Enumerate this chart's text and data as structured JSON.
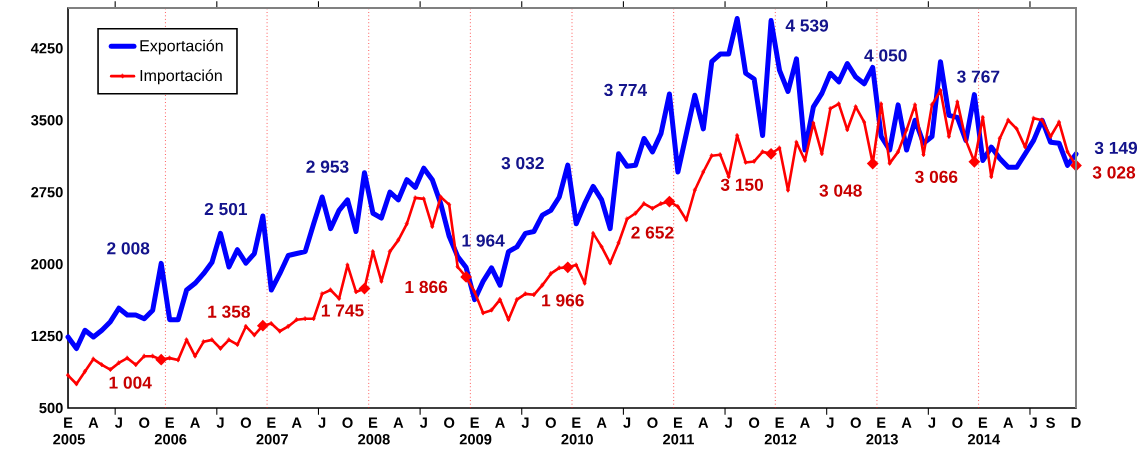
{
  "chart_data": {
    "type": "line",
    "x": [
      "2005-01",
      "2005-02",
      "2005-03",
      "2005-04",
      "2005-05",
      "2005-06",
      "2005-07",
      "2005-08",
      "2005-09",
      "2005-10",
      "2005-11",
      "2005-12",
      "2006-01",
      "2006-02",
      "2006-03",
      "2006-04",
      "2006-05",
      "2006-06",
      "2006-07",
      "2006-08",
      "2006-09",
      "2006-10",
      "2006-11",
      "2006-12",
      "2007-01",
      "2007-02",
      "2007-03",
      "2007-04",
      "2007-05",
      "2007-06",
      "2007-07",
      "2007-08",
      "2007-09",
      "2007-10",
      "2007-11",
      "2007-12",
      "2008-01",
      "2008-02",
      "2008-03",
      "2008-04",
      "2008-05",
      "2008-06",
      "2008-07",
      "2008-08",
      "2008-09",
      "2008-10",
      "2008-11",
      "2008-12",
      "2009-01",
      "2009-02",
      "2009-03",
      "2009-04",
      "2009-05",
      "2009-06",
      "2009-07",
      "2009-08",
      "2009-09",
      "2009-10",
      "2009-11",
      "2009-12",
      "2010-01",
      "2010-02",
      "2010-03",
      "2010-04",
      "2010-05",
      "2010-06",
      "2010-07",
      "2010-08",
      "2010-09",
      "2010-10",
      "2010-11",
      "2010-12",
      "2011-01",
      "2011-02",
      "2011-03",
      "2011-04",
      "2011-05",
      "2011-06",
      "2011-07",
      "2011-08",
      "2011-09",
      "2011-10",
      "2011-11",
      "2011-12",
      "2012-01",
      "2012-02",
      "2012-03",
      "2012-04",
      "2012-05",
      "2012-06",
      "2012-07",
      "2012-08",
      "2012-09",
      "2012-10",
      "2012-11",
      "2012-12",
      "2013-01",
      "2013-02",
      "2013-03",
      "2013-04",
      "2013-05",
      "2013-06",
      "2013-07",
      "2013-08",
      "2013-09",
      "2013-10",
      "2013-11",
      "2013-12",
      "2014-01",
      "2014-02",
      "2014-03",
      "2014-04",
      "2014-05",
      "2014-06",
      "2014-07",
      "2014-08",
      "2014-09",
      "2014-10",
      "2014-11",
      "2014-12"
    ],
    "series": [
      {
        "name": "Exportación",
        "color": "#0000ff",
        "marker": "none",
        "values": [
          1240,
          1120,
          1310,
          1240,
          1310,
          1400,
          1540,
          1470,
          1470,
          1430,
          1520,
          2008,
          1420,
          1420,
          1730,
          1800,
          1900,
          2020,
          2320,
          1970,
          2150,
          2010,
          2110,
          2501,
          1730,
          1900,
          2090,
          2110,
          2130,
          2420,
          2700,
          2370,
          2560,
          2670,
          2340,
          2953,
          2530,
          2480,
          2750,
          2670,
          2880,
          2800,
          3000,
          2880,
          2630,
          2290,
          2080,
          1964,
          1630,
          1820,
          1960,
          1780,
          2130,
          2180,
          2320,
          2340,
          2510,
          2560,
          2700,
          3032,
          2420,
          2630,
          2810,
          2670,
          2370,
          3150,
          3020,
          3030,
          3310,
          3170,
          3360,
          3774,
          2960,
          3360,
          3760,
          3410,
          4110,
          4190,
          4190,
          4560,
          3990,
          3930,
          3340,
          4539,
          4020,
          3800,
          4140,
          3190,
          3640,
          3780,
          3990,
          3900,
          4090,
          3950,
          3880,
          4050,
          3330,
          3190,
          3660,
          3190,
          3500,
          3260,
          3330,
          4110,
          3550,
          3530,
          3290,
          3767,
          3080,
          3220,
          3100,
          3010,
          3010,
          3150,
          3290,
          3500,
          3270,
          3260,
          3030,
          3149
        ],
        "value_labels": [
          null,
          null,
          null,
          null,
          null,
          null,
          null,
          null,
          null,
          null,
          null,
          "2 008",
          null,
          null,
          null,
          null,
          null,
          null,
          null,
          null,
          null,
          null,
          null,
          "2 501",
          null,
          null,
          null,
          null,
          null,
          null,
          null,
          null,
          null,
          null,
          null,
          "2 953",
          null,
          null,
          null,
          null,
          null,
          null,
          null,
          null,
          null,
          null,
          null,
          "1 964",
          null,
          null,
          null,
          null,
          null,
          null,
          null,
          null,
          null,
          null,
          null,
          "3 032",
          null,
          null,
          null,
          null,
          null,
          null,
          null,
          null,
          null,
          null,
          null,
          "3 774",
          null,
          null,
          null,
          null,
          null,
          null,
          null,
          null,
          null,
          null,
          null,
          "4 539",
          null,
          null,
          null,
          null,
          null,
          null,
          null,
          null,
          null,
          null,
          null,
          "4 050",
          null,
          null,
          null,
          null,
          null,
          null,
          null,
          null,
          null,
          null,
          null,
          "3 767",
          null,
          null,
          null,
          null,
          null,
          null,
          null,
          null,
          null,
          null,
          null,
          "3 149"
        ]
      },
      {
        "name": "Importación",
        "color": "#ff0000",
        "marker": "diamond",
        "values": [
          840,
          750,
          880,
          1010,
          950,
          900,
          970,
          1020,
          950,
          1040,
          1040,
          1004,
          1020,
          1000,
          1210,
          1040,
          1190,
          1210,
          1120,
          1210,
          1160,
          1350,
          1260,
          1358,
          1380,
          1300,
          1350,
          1420,
          1430,
          1430,
          1690,
          1730,
          1640,
          1990,
          1710,
          1745,
          2130,
          1820,
          2130,
          2250,
          2420,
          2690,
          2680,
          2390,
          2700,
          2620,
          1970,
          1866,
          1710,
          1490,
          1520,
          1630,
          1420,
          1630,
          1690,
          1680,
          1780,
          1900,
          1960,
          1966,
          1990,
          1800,
          2320,
          2180,
          2010,
          2220,
          2470,
          2530,
          2630,
          2580,
          2630,
          2652,
          2600,
          2460,
          2770,
          2960,
          3130,
          3140,
          2910,
          3340,
          3060,
          3070,
          3170,
          3150,
          3210,
          2770,
          3270,
          3080,
          3470,
          3150,
          3620,
          3670,
          3400,
          3640,
          3480,
          3048,
          3670,
          3050,
          3170,
          3400,
          3660,
          3140,
          3660,
          3810,
          3330,
          3690,
          3290,
          3066,
          3530,
          2910,
          3310,
          3500,
          3410,
          3220,
          3520,
          3500,
          3330,
          3480,
          3170,
          3028
        ],
        "value_labels": [
          null,
          null,
          null,
          null,
          null,
          null,
          null,
          null,
          null,
          null,
          null,
          "1 004",
          null,
          null,
          null,
          null,
          null,
          null,
          null,
          null,
          null,
          null,
          null,
          "1 358",
          null,
          null,
          null,
          null,
          null,
          null,
          null,
          null,
          null,
          null,
          null,
          "1 745",
          null,
          null,
          null,
          null,
          null,
          null,
          null,
          null,
          null,
          null,
          null,
          "1 866",
          null,
          null,
          null,
          null,
          null,
          null,
          null,
          null,
          null,
          null,
          null,
          "1 966",
          null,
          null,
          null,
          null,
          null,
          null,
          null,
          null,
          null,
          null,
          null,
          "2 652",
          null,
          null,
          null,
          null,
          null,
          null,
          null,
          null,
          null,
          null,
          null,
          "3 150",
          null,
          null,
          null,
          null,
          null,
          null,
          null,
          null,
          null,
          null,
          null,
          "3 048",
          null,
          null,
          null,
          null,
          null,
          null,
          null,
          null,
          null,
          null,
          null,
          "3 066",
          null,
          null,
          null,
          null,
          null,
          null,
          null,
          null,
          null,
          null,
          null,
          "3 028"
        ]
      }
    ],
    "xlim": [
      "2005-01",
      "2014-12"
    ],
    "xticks": [
      {
        "value": "2005-01",
        "label": "E 2005"
      },
      {
        "value": "2005-04",
        "label": "A"
      },
      {
        "value": "2005-07",
        "label": "J"
      },
      {
        "value": "2005-10",
        "label": "O"
      },
      {
        "value": "2006-01",
        "label": "E 2006"
      },
      {
        "value": "2006-04",
        "label": "A"
      },
      {
        "value": "2006-07",
        "label": "J"
      },
      {
        "value": "2006-10",
        "label": "O"
      },
      {
        "value": "2007-01",
        "label": "E 2007"
      },
      {
        "value": "2007-04",
        "label": "A"
      },
      {
        "value": "2007-07",
        "label": "J"
      },
      {
        "value": "2007-10",
        "label": "O"
      },
      {
        "value": "2008-01",
        "label": "E 2008"
      },
      {
        "value": "2008-04",
        "label": "A"
      },
      {
        "value": "2008-07",
        "label": "J"
      },
      {
        "value": "2008-10",
        "label": "O"
      },
      {
        "value": "2009-01",
        "label": "E 2009"
      },
      {
        "value": "2009-04",
        "label": "A"
      },
      {
        "value": "2009-07",
        "label": "J"
      },
      {
        "value": "2009-10",
        "label": "O"
      },
      {
        "value": "2010-01",
        "label": "E 2010"
      },
      {
        "value": "2010-04",
        "label": "A"
      },
      {
        "value": "2010-07",
        "label": "J"
      },
      {
        "value": "2010-10",
        "label": "O"
      },
      {
        "value": "2011-01",
        "label": "E 2011"
      },
      {
        "value": "2011-04",
        "label": "A"
      },
      {
        "value": "2011-07",
        "label": "J"
      },
      {
        "value": "2011-10",
        "label": "O"
      },
      {
        "value": "2012-01",
        "label": "E 2012"
      },
      {
        "value": "2012-04",
        "label": "A"
      },
      {
        "value": "2012-07",
        "label": "J"
      },
      {
        "value": "2012-10",
        "label": "O"
      },
      {
        "value": "2013-01",
        "label": "E 2013"
      },
      {
        "value": "2013-04",
        "label": "A"
      },
      {
        "value": "2013-07",
        "label": "J"
      },
      {
        "value": "2013-10",
        "label": "O"
      },
      {
        "value": "2014-01",
        "label": "E 2014"
      },
      {
        "value": "2014-04",
        "label": "A"
      },
      {
        "value": "2014-07",
        "label": "J"
      },
      {
        "value": "2014-09",
        "label": "S"
      },
      {
        "value": "2014-12",
        "label": "D"
      },
      {
        "value": "2005-06-18",
        "label": null
      },
      {
        "value": "2006-06-18",
        "label": null
      },
      {
        "value": "2007-06-18",
        "label": null
      },
      {
        "value": "2008-06-18",
        "label": null
      },
      {
        "value": "2009-06-18",
        "label": null
      },
      {
        "value": "2010-06-18",
        "label": null
      },
      {
        "value": "2011-06-18",
        "label": null
      },
      {
        "value": "2012-06-18",
        "label": null
      },
      {
        "value": "2013-06-18",
        "label": null
      },
      {
        "value": "2014-06-18",
        "label": null
      }
    ],
    "ylim": [
      500,
      4670
    ],
    "yticks": [
      500,
      1250,
      2000,
      2750,
      3500,
      4250
    ],
    "ref_lines": [
      {
        "axis": "x",
        "value": "2005-12-16",
        "color": "#ff0000",
        "line_style": "dotted"
      },
      {
        "axis": "x",
        "value": "2006-12-16",
        "color": "#ff0000",
        "line_style": "dotted"
      },
      {
        "axis": "x",
        "value": "2007-12-16",
        "color": "#ff0000",
        "line_style": "dotted"
      },
      {
        "axis": "x",
        "value": "2008-12-16",
        "color": "#ff0000",
        "line_style": "dotted"
      },
      {
        "axis": "x",
        "value": "2009-12-16",
        "color": "#ff0000",
        "line_style": "dotted"
      },
      {
        "axis": "x",
        "value": "2010-12-16",
        "color": "#ff0000",
        "line_style": "dotted"
      },
      {
        "axis": "x",
        "value": "2011-12-16",
        "color": "#ff0000",
        "line_style": "dotted"
      },
      {
        "axis": "x",
        "value": "2012-12-16",
        "color": "#ff0000",
        "line_style": "dotted"
      },
      {
        "axis": "x",
        "value": "2013-12-16",
        "color": "#ff0000",
        "line_style": "dotted"
      }
    ],
    "legend": "top left",
    "grid": false
  }
}
